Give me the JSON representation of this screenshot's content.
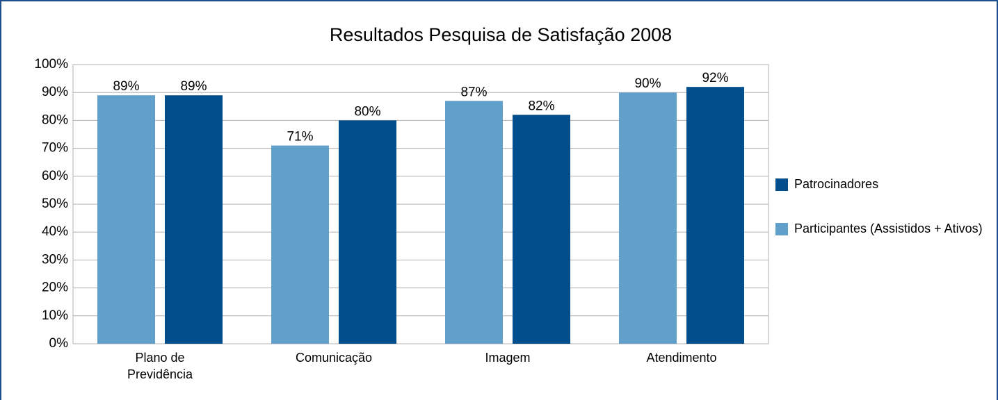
{
  "chart_data": {
    "type": "bar",
    "title": "Resultados Pesquisa de Satisfação 2008",
    "categories": [
      "Plano de Previdência",
      "Comunicação",
      "Imagem",
      "Atendimento"
    ],
    "series": [
      {
        "name": "Participantes (Assistidos + Ativos)",
        "color": "#62a0cc",
        "values": [
          89,
          71,
          87,
          90
        ],
        "value_labels": [
          "89%",
          "71%",
          "87%",
          "90%"
        ]
      },
      {
        "name": "Patrocinadores",
        "color": "#004e8c",
        "values": [
          89,
          80,
          82,
          92
        ],
        "value_labels": [
          "89%",
          "80%",
          "82%",
          "92%"
        ]
      }
    ],
    "ylim": [
      0,
      100
    ],
    "yticks": [
      {
        "value": 0,
        "label": "0%"
      },
      {
        "value": 10,
        "label": "10%"
      },
      {
        "value": 20,
        "label": "20%"
      },
      {
        "value": 30,
        "label": "30%"
      },
      {
        "value": 40,
        "label": "40%"
      },
      {
        "value": 50,
        "label": "50%"
      },
      {
        "value": 60,
        "label": "60%"
      },
      {
        "value": 70,
        "label": "70%"
      },
      {
        "value": 80,
        "label": "80%"
      },
      {
        "value": 90,
        "label": "90%"
      },
      {
        "value": 100,
        "label": "100%"
      }
    ],
    "grid": true,
    "legend": "right"
  }
}
